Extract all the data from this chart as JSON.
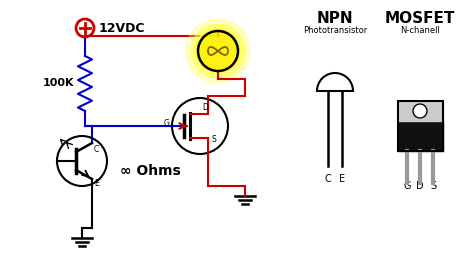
{
  "background_color": "#ffffff",
  "power_label": "12VDC",
  "resistor_label": "100K",
  "ohms_label": "∞ Ohms",
  "npn_label": "NPN",
  "npn_sub": "Phototransistor",
  "mosfet_label": "MOSFET",
  "mosfet_sub": "N-chanell",
  "ce_pins": [
    "C",
    "E"
  ],
  "gds_pins": [
    "G",
    "D",
    "S"
  ],
  "red": "#cc0000",
  "blue": "#0000cc",
  "black": "#000000",
  "dark": "#111111",
  "gray_lead": "#999999",
  "gray_body": "#bbbbbb"
}
